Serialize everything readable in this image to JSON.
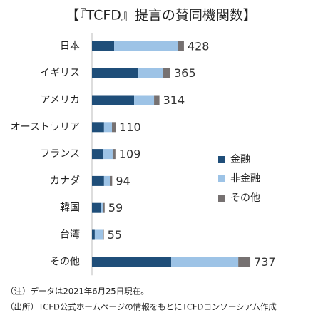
{
  "chart_data": {
    "type": "stacked_bar_horizontal",
    "title": "【『TCFD』提言の賛同機関数】",
    "categories": [
      "日本",
      "イギリス",
      "アメリカ",
      "オーストラリア",
      "フランス",
      "カナダ",
      "韓国",
      "台湾",
      "その他"
    ],
    "series": [
      {
        "name": "金融",
        "color": "#1f4e79",
        "values": [
          103,
          216,
          196,
          56,
          53,
          56,
          40,
          13,
          369
        ]
      },
      {
        "name": "非金融",
        "color": "#9dc3e6",
        "values": [
          296,
          116,
          93,
          37,
          43,
          27,
          13,
          37,
          312
        ]
      },
      {
        "name": "その他",
        "color": "#767171",
        "values": [
          29,
          33,
          25,
          17,
          13,
          11,
          6,
          5,
          56
        ]
      }
    ],
    "totals": [
      428,
      365,
      314,
      110,
      109,
      94,
      59,
      55,
      737
    ],
    "xlim": [
      0,
      800
    ],
    "legend": "right",
    "notes": [
      "（注）データは2021年6月25日現在。",
      "（出所）TCFD公式ホームページの情報をもとにTCFDコンソーシアム作成"
    ]
  }
}
